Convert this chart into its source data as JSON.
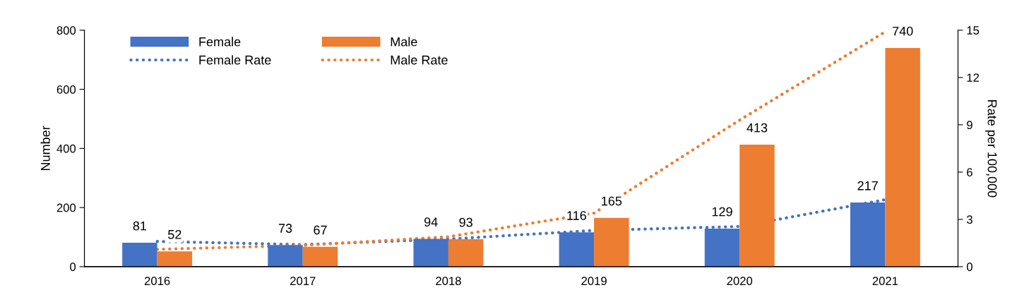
{
  "chart_data": {
    "type": "bar",
    "categories": [
      "2016",
      "2017",
      "2018",
      "2019",
      "2020",
      "2021"
    ],
    "ylabel": "Number",
    "y2label": "Rate per 100,000",
    "ylim": [
      0,
      800
    ],
    "yticks": [
      0,
      200,
      400,
      600,
      800
    ],
    "y2lim": [
      0,
      15
    ],
    "y2ticks": [
      0,
      3,
      6,
      9,
      12,
      15
    ],
    "series": [
      {
        "name": "Female",
        "color": "#4472c4",
        "values": [
          81,
          73,
          94,
          116,
          129,
          217
        ],
        "data_labels": true
      },
      {
        "name": "Male",
        "color": "#ed7d31",
        "values": [
          52,
          67,
          93,
          165,
          413,
          740
        ],
        "data_labels": true
      },
      {
        "name": "Female Rate",
        "type": "line",
        "axis": "y2",
        "color": "#4472c4",
        "line_style": "dotted",
        "values": [
          1.6,
          1.4,
          1.75,
          2.3,
          2.55,
          4.25
        ]
      },
      {
        "name": "Male Rate",
        "type": "line",
        "axis": "y2",
        "color": "#ed7d31",
        "line_style": "dotted",
        "values": [
          1.1,
          1.35,
          1.9,
          3.4,
          9.3,
          14.9
        ]
      }
    ],
    "legend": "top left",
    "grid": false
  }
}
